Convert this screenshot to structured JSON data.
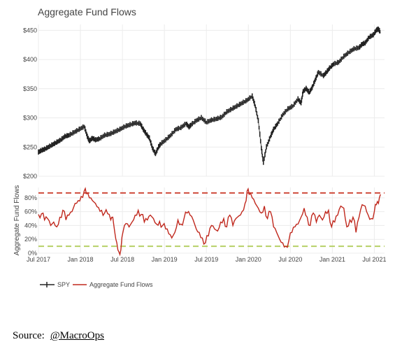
{
  "chart_data": {
    "type": "line",
    "title": "Aggregate Fund Flows",
    "colors": {
      "spy": "#222222",
      "flows": "#c0281d",
      "upper_band": "#cf4b3c",
      "lower_band": "#b6d066",
      "grid": "#ececec"
    },
    "x_ticks": [
      "Jul 2017",
      "Jan 2018",
      "Jul 2018",
      "Jan 2019",
      "Jul 2019",
      "Jan 2020",
      "Jul 2020",
      "Jan 2021",
      "Jul 2021"
    ],
    "top_panel": {
      "series_name": "SPY",
      "ylim": [
        200,
        460
      ],
      "y_ticks": [
        "$450",
        "$400",
        "$350",
        "$300",
        "$250",
        "$200"
      ],
      "y_tick_values": [
        450,
        400,
        350,
        300,
        250,
        200
      ],
      "points": [
        [
          0,
          241
        ],
        [
          0.3,
          244
        ],
        [
          0.6,
          246
        ],
        [
          1,
          250
        ],
        [
          1.4,
          254
        ],
        [
          1.8,
          258
        ],
        [
          2.2,
          262
        ],
        [
          2.6,
          268
        ],
        [
          3,
          270
        ],
        [
          3.5,
          275
        ],
        [
          4,
          280
        ],
        [
          4.5,
          285
        ],
        [
          4.8,
          268
        ],
        [
          5,
          260
        ],
        [
          5.3,
          265
        ],
        [
          5.6,
          262
        ],
        [
          6,
          264
        ],
        [
          6.5,
          270
        ],
        [
          7,
          272
        ],
        [
          7.5,
          276
        ],
        [
          8,
          280
        ],
        [
          8.5,
          285
        ],
        [
          9,
          288
        ],
        [
          9.5,
          291
        ],
        [
          10,
          290
        ],
        [
          10.3,
          280
        ],
        [
          10.6,
          272
        ],
        [
          10.9,
          265
        ],
        [
          11.2,
          248
        ],
        [
          11.5,
          238
        ],
        [
          11.8,
          250
        ],
        [
          12,
          255
        ],
        [
          12.5,
          262
        ],
        [
          13,
          270
        ],
        [
          13.5,
          280
        ],
        [
          14,
          283
        ],
        [
          14.5,
          290
        ],
        [
          14.8,
          284
        ],
        [
          15,
          288
        ],
        [
          15.5,
          295
        ],
        [
          16,
          300
        ],
        [
          16.5,
          292
        ],
        [
          17,
          296
        ],
        [
          17.5,
          298
        ],
        [
          18,
          301
        ],
        [
          18.5,
          310
        ],
        [
          19,
          315
        ],
        [
          19.5,
          320
        ],
        [
          20,
          325
        ],
        [
          20.5,
          330
        ],
        [
          21,
          337
        ],
        [
          21.3,
          320
        ],
        [
          21.6,
          295
        ],
        [
          21.9,
          248
        ],
        [
          22.1,
          223
        ],
        [
          22.4,
          250
        ],
        [
          22.8,
          268
        ],
        [
          23.1,
          280
        ],
        [
          23.5,
          290
        ],
        [
          24,
          305
        ],
        [
          24.5,
          315
        ],
        [
          25,
          320
        ],
        [
          25.5,
          332
        ],
        [
          25.8,
          325
        ],
        [
          26,
          345
        ],
        [
          26.3,
          350
        ],
        [
          26.6,
          343
        ],
        [
          26.9,
          352
        ],
        [
          27.2,
          365
        ],
        [
          27.5,
          378
        ],
        [
          28,
          372
        ],
        [
          28.3,
          378
        ],
        [
          28.6,
          385
        ],
        [
          29,
          392
        ],
        [
          29.5,
          395
        ],
        [
          30,
          405
        ],
        [
          30.5,
          412
        ],
        [
          31,
          418
        ],
        [
          31.5,
          420
        ],
        [
          31.8,
          426
        ],
        [
          32.1,
          428
        ],
        [
          32.5,
          438
        ],
        [
          32.9,
          442
        ],
        [
          33.2,
          450
        ],
        [
          33.4,
          452
        ],
        [
          33.6,
          446
        ]
      ]
    },
    "bottom_panel": {
      "series_name": "Aggregate Fund Flows",
      "ylabel": "Aggregate Fund Flows",
      "ylim": [
        0,
        95
      ],
      "y_ticks": [
        "80%",
        "60%",
        "40%",
        "20%",
        "0%"
      ],
      "y_tick_values": [
        80,
        60,
        40,
        20,
        0
      ],
      "upper_band": 87,
      "lower_band": 10,
      "points": [
        [
          0,
          56
        ],
        [
          0.3,
          57
        ],
        [
          0.6,
          48
        ],
        [
          0.9,
          50
        ],
        [
          1.2,
          40
        ],
        [
          1.5,
          45
        ],
        [
          1.8,
          38
        ],
        [
          2.1,
          52
        ],
        [
          2.4,
          62
        ],
        [
          2.7,
          48
        ],
        [
          3,
          55
        ],
        [
          3.3,
          60
        ],
        [
          3.6,
          72
        ],
        [
          3.9,
          76
        ],
        [
          4.2,
          82
        ],
        [
          4.5,
          90
        ],
        [
          4.7,
          86
        ],
        [
          5,
          80
        ],
        [
          5.3,
          76
        ],
        [
          5.6,
          72
        ],
        [
          5.9,
          66
        ],
        [
          6.2,
          62
        ],
        [
          6.5,
          58
        ],
        [
          6.8,
          57
        ],
        [
          7.1,
          48
        ],
        [
          7.3,
          52
        ],
        [
          7.5,
          30
        ],
        [
          7.7,
          15
        ],
        [
          7.9,
          2
        ],
        [
          8.1,
          5
        ],
        [
          8.3,
          30
        ],
        [
          8.6,
          43
        ],
        [
          8.9,
          38
        ],
        [
          9.2,
          45
        ],
        [
          9.5,
          55
        ],
        [
          9.8,
          62
        ],
        [
          10.1,
          56
        ],
        [
          10.4,
          45
        ],
        [
          10.7,
          48
        ],
        [
          11,
          55
        ],
        [
          11.3,
          50
        ],
        [
          11.6,
          42
        ],
        [
          11.9,
          46
        ],
        [
          12.2,
          40
        ],
        [
          12.5,
          35
        ],
        [
          12.8,
          28
        ],
        [
          13.1,
          22
        ],
        [
          13.4,
          30
        ],
        [
          13.7,
          48
        ],
        [
          14,
          42
        ],
        [
          14.3,
          50
        ],
        [
          14.6,
          58
        ],
        [
          14.9,
          55
        ],
        [
          15.2,
          48
        ],
        [
          15.5,
          35
        ],
        [
          15.8,
          30
        ],
        [
          16.1,
          22
        ],
        [
          16.4,
          15
        ],
        [
          16.7,
          25
        ],
        [
          17,
          40
        ],
        [
          17.3,
          35
        ],
        [
          17.6,
          32
        ],
        [
          17.9,
          45
        ],
        [
          18.2,
          50
        ],
        [
          18.5,
          38
        ],
        [
          18.8,
          55
        ],
        [
          19.1,
          40
        ],
        [
          19.4,
          50
        ],
        [
          19.7,
          54
        ],
        [
          20,
          60
        ],
        [
          20.3,
          72
        ],
        [
          20.5,
          90
        ],
        [
          20.7,
          85
        ],
        [
          21,
          80
        ],
        [
          21.3,
          72
        ],
        [
          21.6,
          65
        ],
        [
          21.9,
          58
        ],
        [
          22.2,
          68
        ],
        [
          22.5,
          50
        ],
        [
          22.8,
          60
        ],
        [
          23.1,
          38
        ],
        [
          23.4,
          30
        ],
        [
          23.7,
          20
        ],
        [
          24,
          15
        ],
        [
          24.3,
          10
        ],
        [
          24.6,
          18
        ],
        [
          24.9,
          30
        ],
        [
          25.2,
          38
        ],
        [
          25.5,
          42
        ],
        [
          25.8,
          52
        ],
        [
          26.1,
          65
        ],
        [
          26.4,
          52
        ],
        [
          26.7,
          40
        ],
        [
          27,
          58
        ],
        [
          27.3,
          45
        ],
        [
          27.6,
          55
        ],
        [
          27.9,
          48
        ],
        [
          28.2,
          60
        ],
        [
          28.5,
          62
        ],
        [
          28.8,
          38
        ],
        [
          29.1,
          45
        ],
        [
          29.4,
          55
        ],
        [
          29.7,
          68
        ],
        [
          30,
          65
        ],
        [
          30.3,
          38
        ],
        [
          30.6,
          48
        ],
        [
          30.9,
          52
        ],
        [
          31.2,
          30
        ],
        [
          31.5,
          52
        ],
        [
          31.8,
          70
        ],
        [
          32.1,
          68
        ],
        [
          32.4,
          55
        ],
        [
          32.7,
          50
        ],
        [
          33,
          60
        ],
        [
          33.2,
          70
        ],
        [
          33.4,
          72
        ],
        [
          33.6,
          85
        ]
      ]
    },
    "legend": [
      "SPY",
      "Aggregate Fund Flows"
    ]
  },
  "source": {
    "label": "Source:",
    "link": "@MacroOps"
  }
}
